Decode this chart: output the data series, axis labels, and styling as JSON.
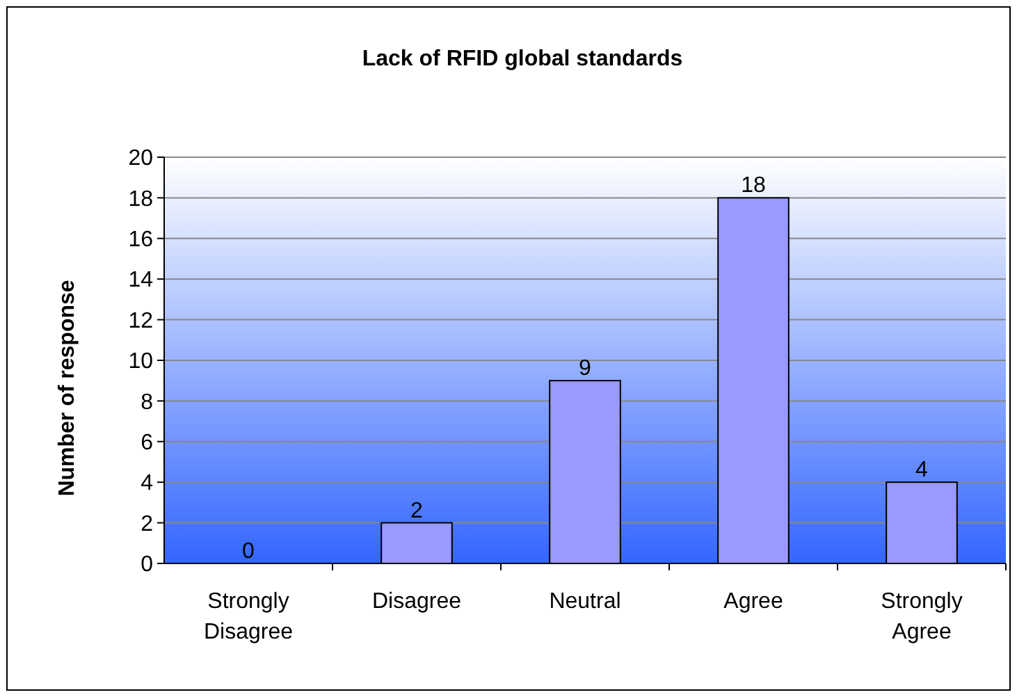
{
  "chart_data": {
    "type": "bar",
    "title": "Lack of RFID global standards",
    "ylabel": "Number of response",
    "categories": [
      "Strongly Disagree",
      "Disagree",
      "Neutral",
      "Agree",
      "Strongly Agree"
    ],
    "values": [
      0,
      2,
      9,
      18,
      4
    ],
    "color": "#9999ff",
    "ylim": [
      0,
      20
    ],
    "yticks": [
      0,
      2,
      4,
      6,
      8,
      10,
      12,
      14,
      16,
      18,
      20
    ],
    "grid": "y",
    "data_labels": true
  }
}
